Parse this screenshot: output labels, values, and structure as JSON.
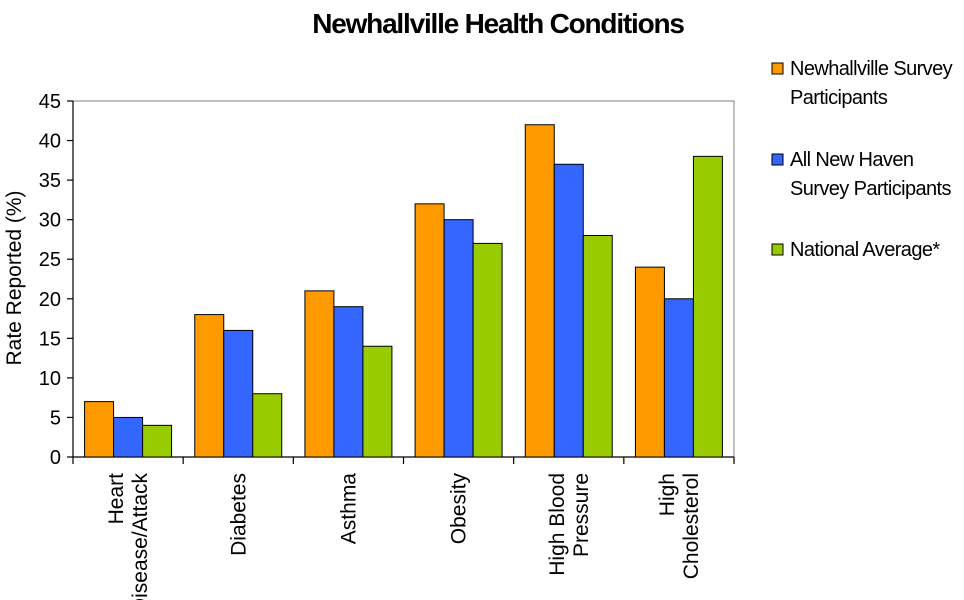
{
  "chart_data": {
    "type": "bar",
    "title": "Newhallville Health Conditions",
    "ylabel": "Rate Reported (%)",
    "xlabel": "",
    "ylim": [
      0,
      45
    ],
    "yticks": [
      0,
      5,
      10,
      15,
      20,
      25,
      30,
      35,
      40,
      45
    ],
    "grid": false,
    "legend_position": "right",
    "categories": [
      [
        "Heart",
        "Disease/Attack"
      ],
      [
        "Diabetes"
      ],
      [
        "Asthma"
      ],
      [
        "Obesity"
      ],
      [
        "High Blood",
        "Pressure"
      ],
      [
        "High",
        "Cholesterol"
      ]
    ],
    "series": [
      {
        "name": [
          "Newhallville Survey",
          "Participants"
        ],
        "color": "#FF9900",
        "values": [
          7,
          18,
          21,
          32,
          42,
          24
        ]
      },
      {
        "name": [
          "All New Haven",
          "Survey Participants"
        ],
        "color": "#3366FF",
        "values": [
          5,
          16,
          19,
          30,
          37,
          20
        ]
      },
      {
        "name": [
          "National Average*"
        ],
        "color": "#99CC00",
        "values": [
          4,
          8,
          14,
          27,
          28,
          38
        ]
      }
    ]
  }
}
